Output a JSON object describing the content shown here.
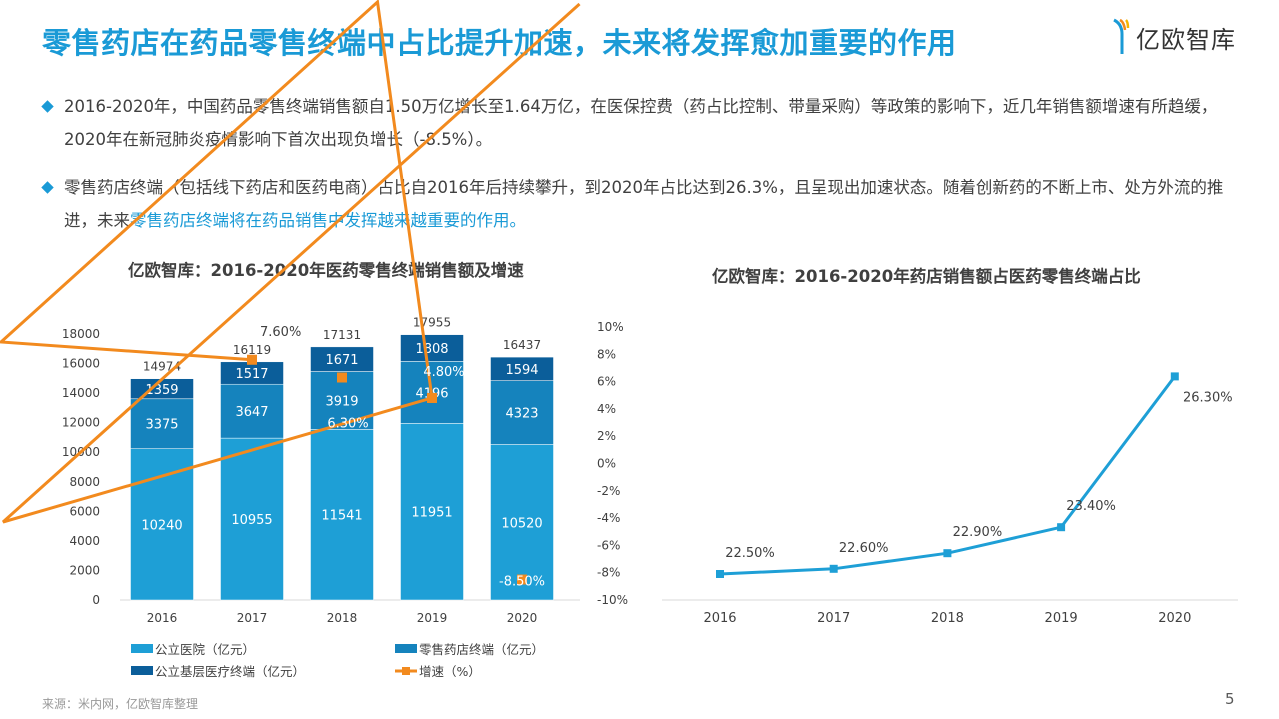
{
  "header": {
    "title": "零售药店在药品零售终端中占比提升加速，未来将发挥愈加重要的作用",
    "logo_text": "亿欧智库"
  },
  "bullets": [
    {
      "text": "2016-2020年，中国药品零售终端销售额自1.50万亿增长至1.64万亿，在医保控费（药占比控制、带量采购）等政策的影响下，近几年销售额增速有所趋缓，2020年在新冠肺炎疫情影响下首次出现负增长（-8.5%）。",
      "highlight": ""
    },
    {
      "text": "零售药店终端（包括线下药店和医药电商）占比自2016年后持续攀升，到2020年占比达到26.3%，且呈现出加速状态。随着创新药的不断上市、处方外流的推进，未来",
      "highlight": "零售药店终端将在药品销售中发挥越来越重要的作用。"
    }
  ],
  "chart_data": [
    {
      "type": "bar",
      "stacked": true,
      "title": "亿欧智库：2016-2020年医药零售终端销售额及增速",
      "categories": [
        "2016",
        "2017",
        "2018",
        "2019",
        "2020"
      ],
      "series": [
        {
          "name": "公立医院（亿元）",
          "values": [
            10240,
            10955,
            11541,
            11951,
            10520
          ],
          "color": "#1e9fd6"
        },
        {
          "name": "零售药店终端（亿元）",
          "values": [
            3375,
            3647,
            3919,
            4196,
            4323
          ],
          "color": "#1583bd"
        },
        {
          "name": "公立基层医疗终端（亿元）",
          "values": [
            1359,
            1517,
            1671,
            1808,
            1594
          ],
          "color": "#0b5e9a"
        },
        {
          "name": "增速（%）",
          "type": "line",
          "axis": "right",
          "values": [
            null,
            7.6,
            6.3,
            4.8,
            -8.5
          ],
          "labels": [
            "",
            "7.60%",
            "6.30%",
            "4.80%",
            "-8.50%"
          ],
          "color": "#f28a1e"
        }
      ],
      "totals": [
        14974,
        16119,
        17131,
        17955,
        16437
      ],
      "ylim": [
        0,
        18000
      ],
      "yticks": [
        0,
        2000,
        4000,
        6000,
        8000,
        10000,
        12000,
        14000,
        16000,
        18000
      ],
      "y2lim": [
        -10,
        10
      ],
      "y2ticks": [
        "-10%",
        "-8%",
        "-6%",
        "-4%",
        "-2%",
        "0%",
        "2%",
        "4%",
        "6%",
        "8%",
        "10%"
      ],
      "legend": "bottom"
    },
    {
      "type": "line",
      "title": "亿欧智库：2016-2020年药店销售额占医药零售终端占比",
      "categories": [
        "2016",
        "2017",
        "2018",
        "2019",
        "2020"
      ],
      "values": [
        22.5,
        22.6,
        22.9,
        23.4,
        26.3
      ],
      "labels": [
        "22.50%",
        "22.60%",
        "22.90%",
        "23.40%",
        "26.30%"
      ],
      "ylim": [
        22,
        27
      ],
      "color": "#1e9fd6",
      "legend": "none"
    }
  ],
  "footer": {
    "source": "来源：米内网，亿欧智库整理",
    "page": "5"
  }
}
